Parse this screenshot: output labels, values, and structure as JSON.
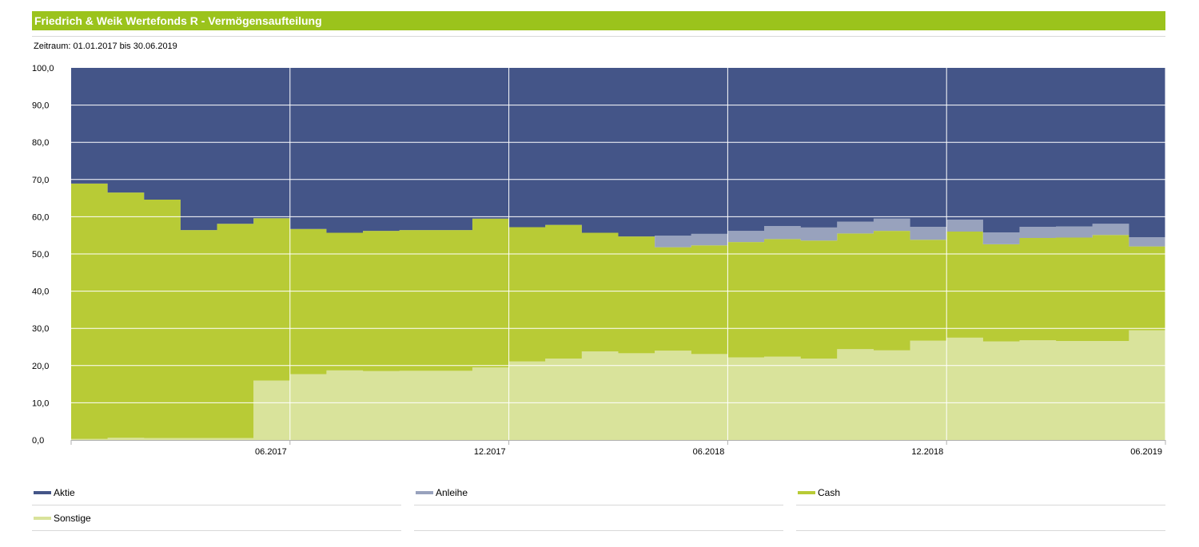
{
  "header": {
    "title": "Friedrich & Weik Wertefonds R - Vermögensaufteilung",
    "subtitle": "Zeitraum: 01.01.2017 bis 30.06.2019"
  },
  "colors": {
    "brand": "#9bc31c",
    "Aktie": "#445588",
    "Anleihe": "#98a2bd",
    "Cash": "#b8cb36",
    "Sonstige": "#d9e39b",
    "grid": "#ffffff"
  },
  "chart_data": {
    "type": "area",
    "step": true,
    "stacked": true,
    "title": "Friedrich & Weik Wertefonds R - Vermögensaufteilung",
    "subtitle": "Zeitraum: 01.01.2017 bis 30.06.2019",
    "ylim": [
      0,
      100
    ],
    "y_ticks": [
      "0,0",
      "10,0",
      "20,0",
      "30,0",
      "40,0",
      "50,0",
      "60,0",
      "70,0",
      "80,0",
      "90,0",
      "100,0"
    ],
    "x_ticks": [
      "06.2017",
      "12.2017",
      "06.2018",
      "12.2018",
      "06.2019"
    ],
    "x": [
      "01.2017",
      "02.2017",
      "03.2017",
      "04.2017",
      "05.2017",
      "06.2017",
      "07.2017",
      "08.2017",
      "09.2017",
      "10.2017",
      "11.2017",
      "12.2017",
      "01.2018",
      "02.2018",
      "03.2018",
      "04.2018",
      "05.2018",
      "06.2018",
      "07.2018",
      "08.2018",
      "09.2018",
      "10.2018",
      "11.2018",
      "12.2018",
      "01.2019",
      "02.2019",
      "03.2019",
      "04.2019",
      "05.2019",
      "06.2019"
    ],
    "series": [
      {
        "name": "Sonstige",
        "values": [
          0.3,
          0.6,
          0.5,
          0.5,
          0.5,
          16.0,
          17.7,
          18.7,
          18.5,
          18.6,
          18.6,
          19.5,
          21.1,
          21.9,
          23.8,
          23.3,
          24.0,
          23.1,
          22.2,
          22.4,
          21.9,
          24.4,
          24.1,
          26.7,
          27.5,
          26.5,
          26.8,
          26.6,
          26.6,
          29.5
        ]
      },
      {
        "name": "Cash",
        "values": [
          68.6,
          65.9,
          64.1,
          55.9,
          57.6,
          43.6,
          39.0,
          37.0,
          37.7,
          37.8,
          37.8,
          40.0,
          36.1,
          35.9,
          31.9,
          31.4,
          27.8,
          29.2,
          31.0,
          31.6,
          31.7,
          31.1,
          32.1,
          27.1,
          28.5,
          26.1,
          27.5,
          27.8,
          28.5,
          22.5
        ]
      },
      {
        "name": "Anleihe",
        "values": [
          0,
          0,
          0,
          0,
          0,
          0,
          0,
          0,
          0,
          0,
          0,
          0,
          0,
          0,
          0,
          0,
          3.1,
          3.1,
          3.0,
          3.5,
          3.5,
          3.2,
          3.3,
          3.5,
          3.2,
          3.2,
          3.0,
          3.0,
          3.0,
          2.5
        ]
      },
      {
        "name": "Aktie",
        "values": [
          31.1,
          33.5,
          35.4,
          43.6,
          41.9,
          40.4,
          43.3,
          44.3,
          43.8,
          43.6,
          43.6,
          40.5,
          42.8,
          42.2,
          44.3,
          45.3,
          45.1,
          44.6,
          43.8,
          42.5,
          42.9,
          41.3,
          40.5,
          42.7,
          40.8,
          44.2,
          42.7,
          42.6,
          41.9,
          45.5
        ]
      }
    ],
    "legend": [
      "Aktie",
      "Anleihe",
      "Cash",
      "Sonstige"
    ],
    "legend_position": "bottom",
    "grid": true
  }
}
